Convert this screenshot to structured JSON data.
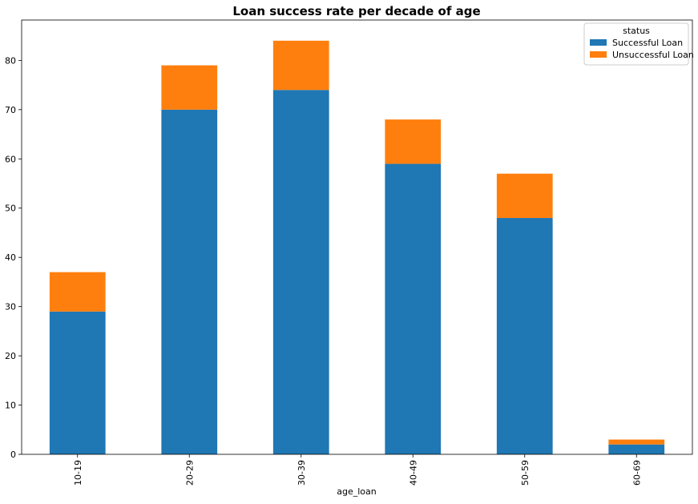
{
  "chart_data": {
    "type": "bar",
    "stacked": true,
    "title": "Loan success rate per decade of age",
    "xlabel": "age_loan",
    "ylabel": "",
    "categories": [
      "10-19",
      "20-29",
      "30-39",
      "40-49",
      "50-59",
      "60-69"
    ],
    "series": [
      {
        "name": "Successful Loan",
        "values": [
          29,
          70,
          74,
          59,
          48,
          2
        ],
        "color": "#1f77b4"
      },
      {
        "name": "Unsuccessful Loan",
        "values": [
          8,
          9,
          10,
          9,
          9,
          1
        ],
        "color": "#ff7f0e"
      }
    ],
    "ylim": [
      0,
      88.2
    ],
    "yticks": [
      0,
      10,
      20,
      30,
      40,
      50,
      60,
      70,
      80
    ],
    "grid": false,
    "legend": {
      "title": "status",
      "placement": "top-right"
    }
  }
}
